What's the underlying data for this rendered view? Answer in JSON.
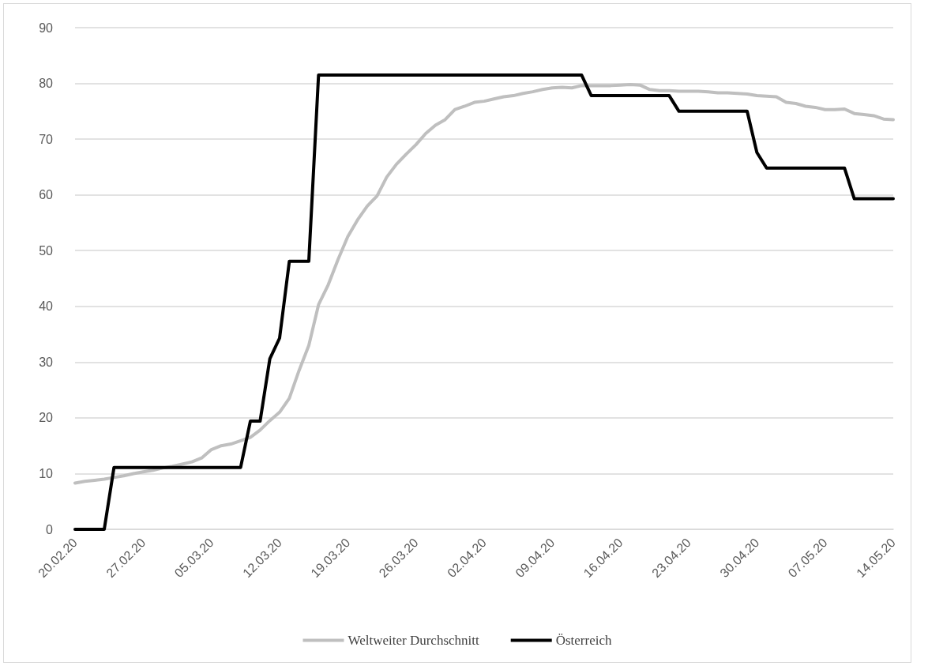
{
  "chart_data": {
    "type": "line",
    "categories": [
      "20.02.20",
      null,
      null,
      null,
      null,
      null,
      null,
      "27.02.20",
      null,
      null,
      null,
      null,
      null,
      null,
      "05.03.20",
      null,
      null,
      null,
      null,
      null,
      null,
      "12.03.20",
      null,
      null,
      null,
      null,
      null,
      null,
      "19.03.20",
      null,
      null,
      null,
      null,
      null,
      null,
      "26.03.20",
      null,
      null,
      null,
      null,
      null,
      null,
      "02.04.20",
      null,
      null,
      null,
      null,
      null,
      null,
      "09.04.20",
      null,
      null,
      null,
      null,
      null,
      null,
      "16.04.20",
      null,
      null,
      null,
      null,
      null,
      null,
      "23.04.20",
      null,
      null,
      null,
      null,
      null,
      null,
      "30.04.20",
      null,
      null,
      null,
      null,
      null,
      null,
      "07.05.20",
      null,
      null,
      null,
      null,
      null,
      null,
      "14.05.20"
    ],
    "series": [
      {
        "name": "Weltweiter Durchschnitt",
        "color": "#bfbfbf",
        "values": [
          8.3,
          8.6,
          8.8,
          9.0,
          9.3,
          9.6,
          10.0,
          10.3,
          10.6,
          11.0,
          11.3,
          11.7,
          12.1,
          12.8,
          14.3,
          15.0,
          15.3,
          15.9,
          16.5,
          17.8,
          19.5,
          21.0,
          23.5,
          28.5,
          33.0,
          40.3,
          43.9,
          48.4,
          52.5,
          55.5,
          58.0,
          59.8,
          63.2,
          65.5,
          67.3,
          69.0,
          71.0,
          72.5,
          73.5,
          75.3,
          75.9,
          76.6,
          76.8,
          77.2,
          77.6,
          77.8,
          78.2,
          78.5,
          78.9,
          79.2,
          79.3,
          79.2,
          79.6,
          79.6,
          79.6,
          79.6,
          79.7,
          79.8,
          79.7,
          78.9,
          78.7,
          78.7,
          78.6,
          78.6,
          78.6,
          78.5,
          78.3,
          78.3,
          78.2,
          78.1,
          77.8,
          77.7,
          77.6,
          76.6,
          76.4,
          75.9,
          75.7,
          75.3,
          75.3,
          75.4,
          74.6,
          74.4,
          74.2,
          73.6,
          73.5
        ]
      },
      {
        "name": "Österreich",
        "color": "#000000",
        "values": [
          0,
          0,
          0,
          0,
          11.1,
          11.1,
          11.1,
          11.1,
          11.1,
          11.1,
          11.1,
          11.1,
          11.1,
          11.1,
          11.1,
          11.1,
          11.1,
          11.1,
          19.4,
          19.4,
          30.6,
          34.3,
          48.1,
          48.1,
          48.1,
          81.5,
          81.5,
          81.5,
          81.5,
          81.5,
          81.5,
          81.5,
          81.5,
          81.5,
          81.5,
          81.5,
          81.5,
          81.5,
          81.5,
          81.5,
          81.5,
          81.5,
          81.5,
          81.5,
          81.5,
          81.5,
          81.5,
          81.5,
          81.5,
          81.5,
          81.5,
          81.5,
          81.5,
          77.8,
          77.8,
          77.8,
          77.8,
          77.8,
          77.8,
          77.8,
          77.8,
          77.8,
          75,
          75,
          75,
          75,
          75,
          75,
          75,
          75,
          67.6,
          64.8,
          64.8,
          64.8,
          64.8,
          64.8,
          64.8,
          64.8,
          64.8,
          64.8,
          59.3,
          59.3,
          59.3,
          59.3,
          59.3
        ]
      }
    ],
    "ylim": [
      0,
      90
    ],
    "yticks": [
      0,
      10,
      20,
      30,
      40,
      50,
      60,
      70,
      80,
      90
    ],
    "grid": "y",
    "legend": "bottom",
    "marker": "none",
    "line_style": "solid"
  }
}
